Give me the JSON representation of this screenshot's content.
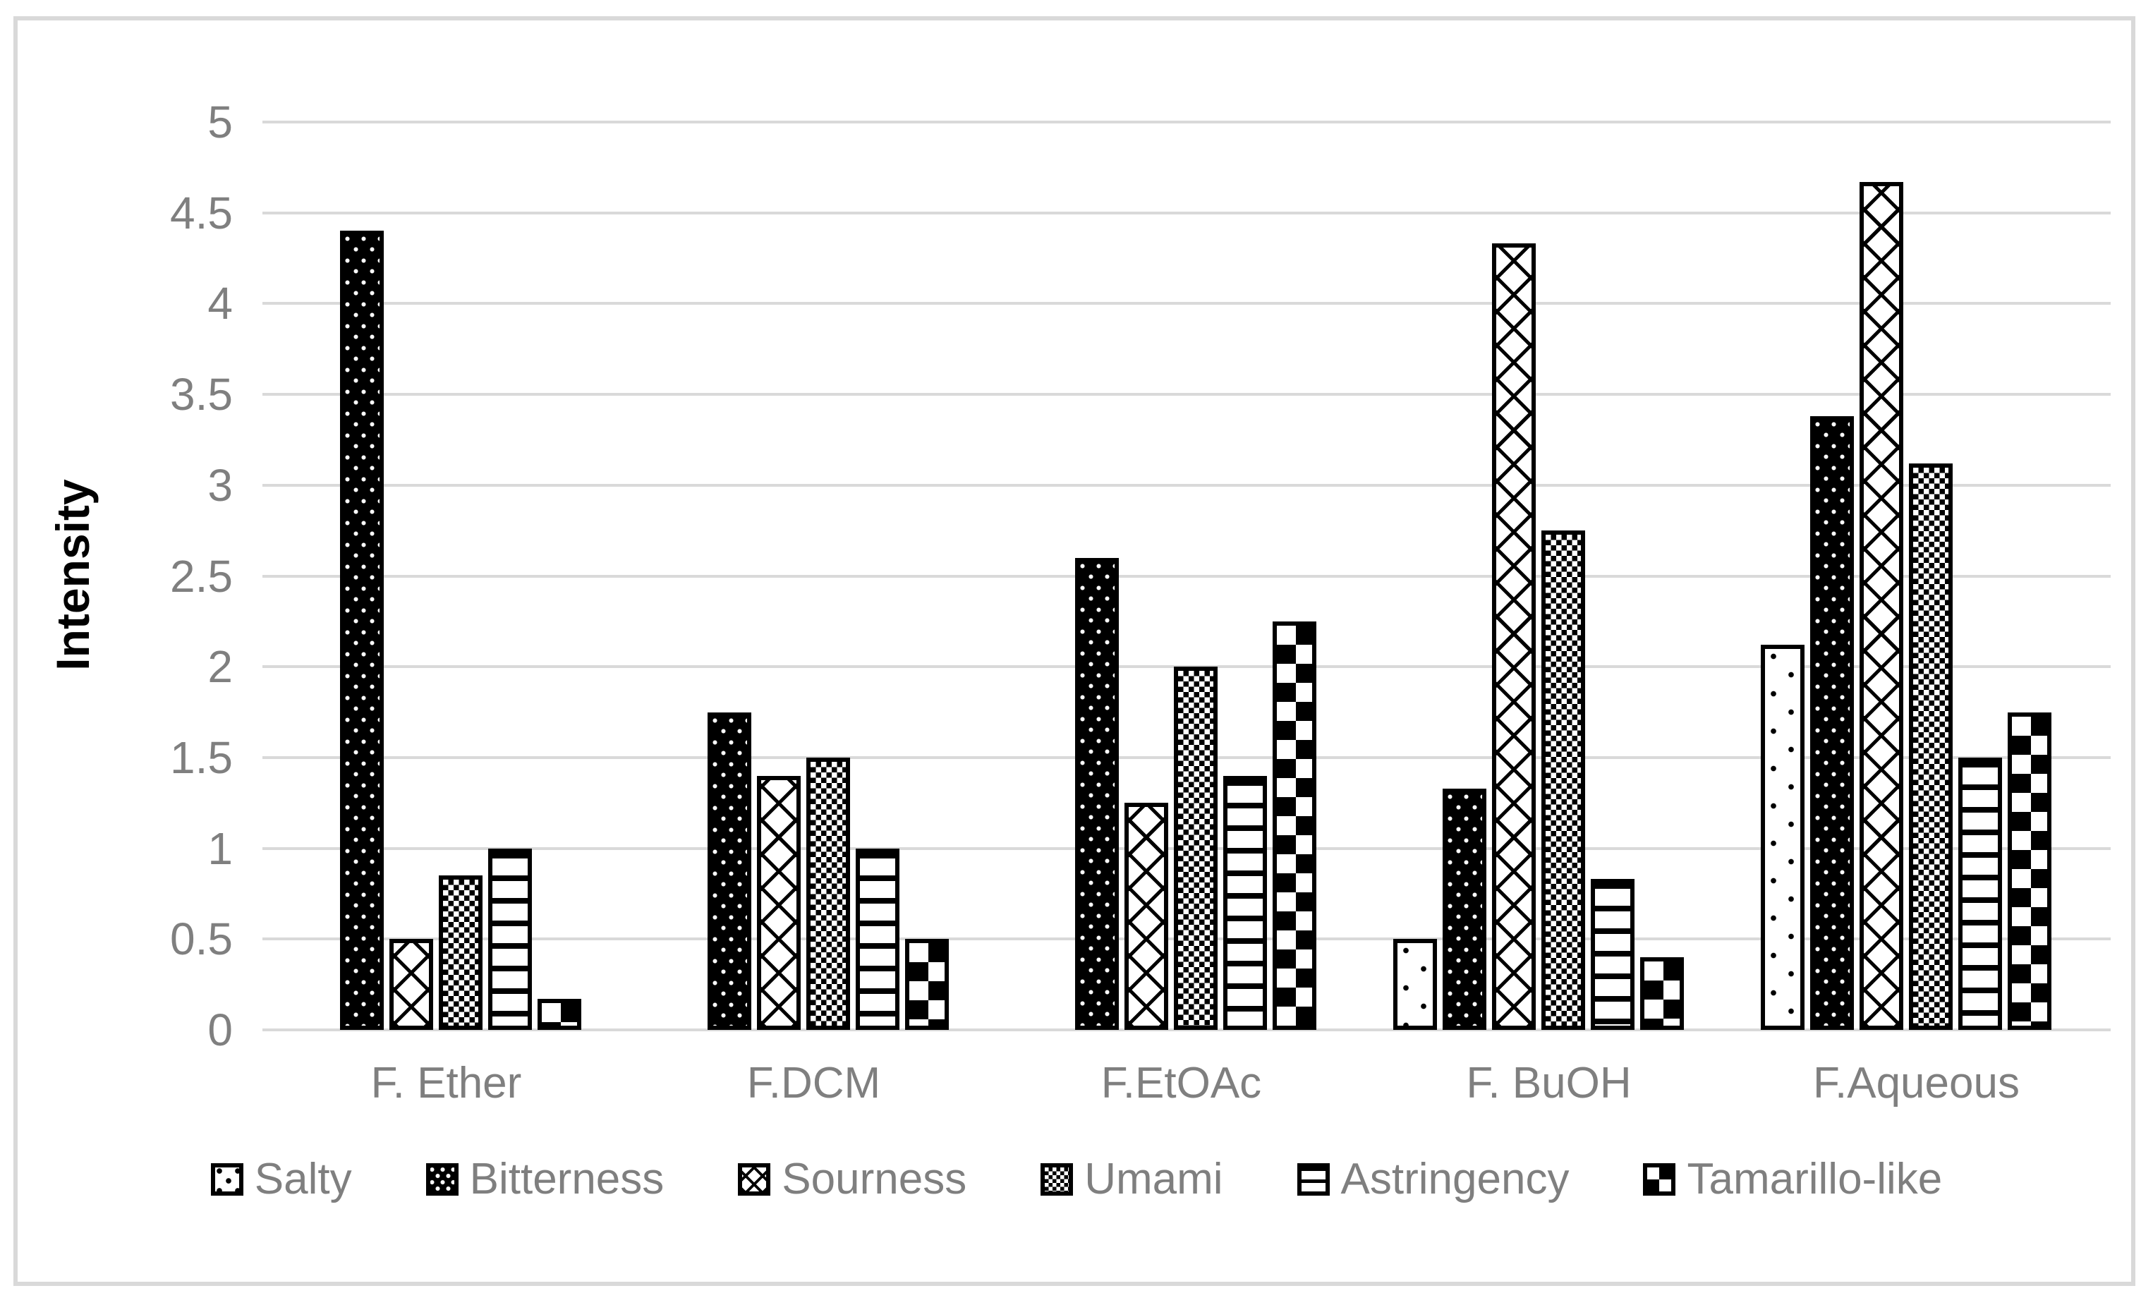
{
  "chart_data": {
    "type": "bar",
    "title": "",
    "xlabel": "",
    "ylabel": "Intensity",
    "ylim": [
      0,
      5
    ],
    "ytick_step": 0.5,
    "yticks": [
      "5",
      "4.5",
      "4",
      "3.5",
      "3",
      "2.5",
      "2",
      "1.5",
      "1",
      "0.5",
      "0"
    ],
    "grid": "horizontal",
    "legend_position": "bottom",
    "categories": [
      "F. Ether",
      "F.DCM",
      "F.EtOAc",
      "F. BuOH",
      "F.Aqueous"
    ],
    "series": [
      {
        "name": "Salty",
        "pattern": "dots-on-white",
        "values": [
          0,
          0,
          0,
          0.5,
          2.12
        ]
      },
      {
        "name": "Bitterness",
        "pattern": "dots-on-black",
        "values": [
          4.4,
          1.75,
          2.6,
          1.33,
          3.38
        ]
      },
      {
        "name": "Sourness",
        "pattern": "diag-lattice",
        "values": [
          0.5,
          1.4,
          1.25,
          4.33,
          4.67
        ]
      },
      {
        "name": "Umami",
        "pattern": "small-checker",
        "values": [
          0.85,
          1.5,
          2.0,
          2.75,
          3.12
        ]
      },
      {
        "name": "Astringency",
        "pattern": "horiz-lines",
        "values": [
          1.0,
          1.0,
          1.4,
          0.83,
          1.5
        ]
      },
      {
        "name": "Tamarillo-like",
        "pattern": "large-checker",
        "values": [
          0.17,
          0.5,
          2.25,
          0.4,
          1.75
        ]
      }
    ],
    "colors": {
      "axis_text": "#7f7f7f",
      "gridline": "#d9d9d9",
      "bar_ink": "#000000",
      "figure_border": "#d9d9d9",
      "background": "#ffffff"
    }
  }
}
